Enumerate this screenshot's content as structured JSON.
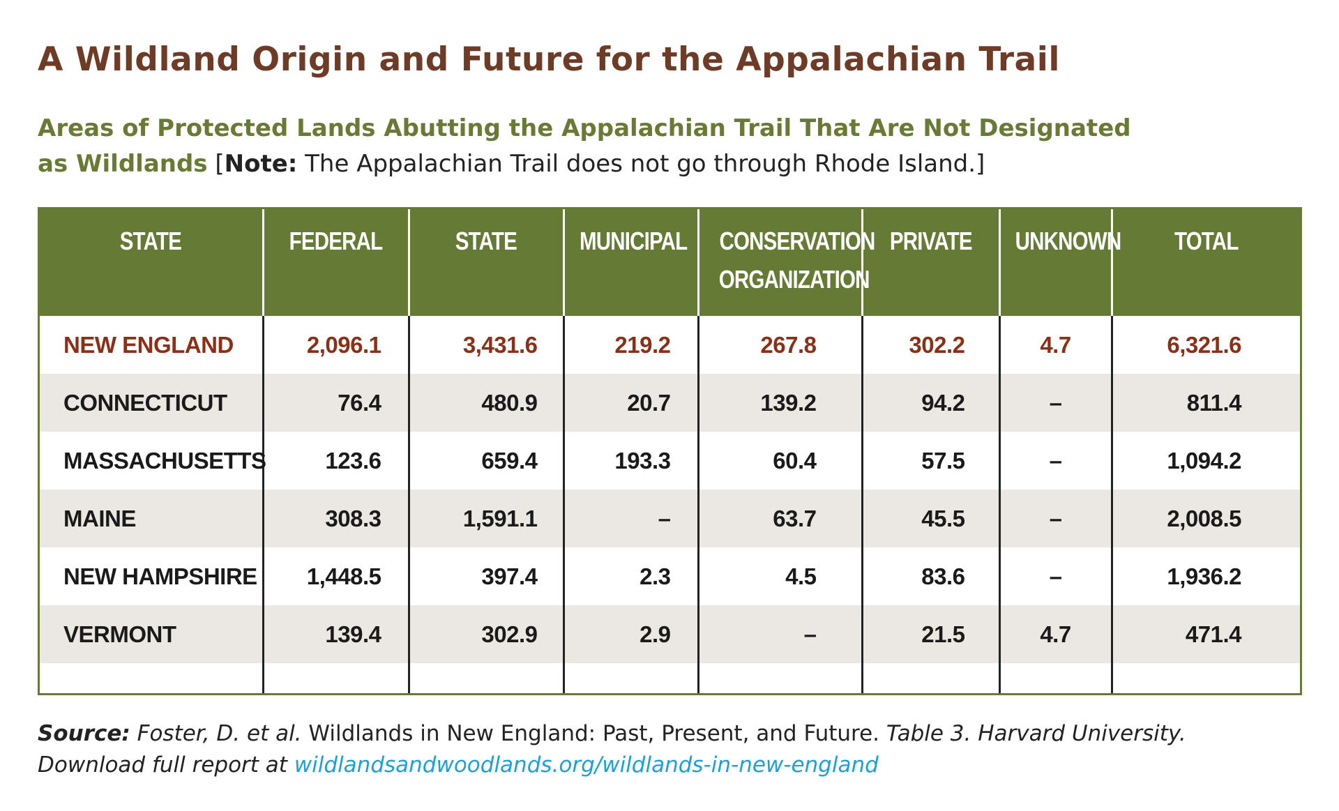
{
  "title": "A Wildland Origin and Future for the Appalachian Trail",
  "subtitle": {
    "line1": "Areas of Protected Lands Abutting the Appalachian Trail That Are Not Designated",
    "line2_green": "as Wildlands",
    "note_open": "[",
    "note_label": "Note:",
    "note_text": " The Appalachian Trail does not go through Rhode Island.]"
  },
  "table": {
    "headers": {
      "state_name": "STATE",
      "federal": "FEDERAL",
      "state": "STATE",
      "municipal": "MUNICIPAL",
      "conservation_line1": "CONSERVATION",
      "conservation_line2": "ORGANIZATION",
      "private": "PRIVATE",
      "unknown": "UNKNOWN",
      "total": "TOTAL"
    },
    "rows": [
      {
        "name": "NEW ENGLAND",
        "federal": "2,096.1",
        "state": "3,431.6",
        "municipal": "219.2",
        "conservation": "267.8",
        "private": "302.2",
        "unknown": "4.7",
        "total": "6,321.6"
      },
      {
        "name": "CONNECTICUT",
        "federal": "76.4",
        "state": "480.9",
        "municipal": "20.7",
        "conservation": "139.2",
        "private": "94.2",
        "unknown": "–",
        "total": "811.4"
      },
      {
        "name": "MASSACHUSETTS",
        "federal": "123.6",
        "state": "659.4",
        "municipal": "193.3",
        "conservation": "60.4",
        "private": "57.5",
        "unknown": "–",
        "total": "1,094.2"
      },
      {
        "name": "MAINE",
        "federal": "308.3",
        "state": "1,591.1",
        "municipal": "–",
        "conservation": "63.7",
        "private": "45.5",
        "unknown": "–",
        "total": "2,008.5"
      },
      {
        "name": "NEW HAMPSHIRE",
        "federal": "1,448.5",
        "state": "397.4",
        "municipal": "2.3",
        "conservation": "4.5",
        "private": "83.6",
        "unknown": "–",
        "total": "1,936.2"
      },
      {
        "name": "VERMONT",
        "federal": "139.4",
        "state": "302.9",
        "municipal": "2.9",
        "conservation": "–",
        "private": "21.5",
        "unknown": "4.7",
        "total": "471.4"
      }
    ]
  },
  "source": {
    "label": "Source:",
    "authors": " Foster, D. et al.",
    "report": " Wildlands in New England: Past, Present, and Future.",
    "table_ref": " Table 3. Harvard University.",
    "download": "Download full report at ",
    "link": "wildlandsandwoodlands.org/wildlands-in-new-england"
  },
  "colors": {
    "title": "#6e3b26",
    "green": "#647a35",
    "region": "#8b2f16",
    "alt_row": "#ebe7e2",
    "link": "#1ba0d9"
  }
}
